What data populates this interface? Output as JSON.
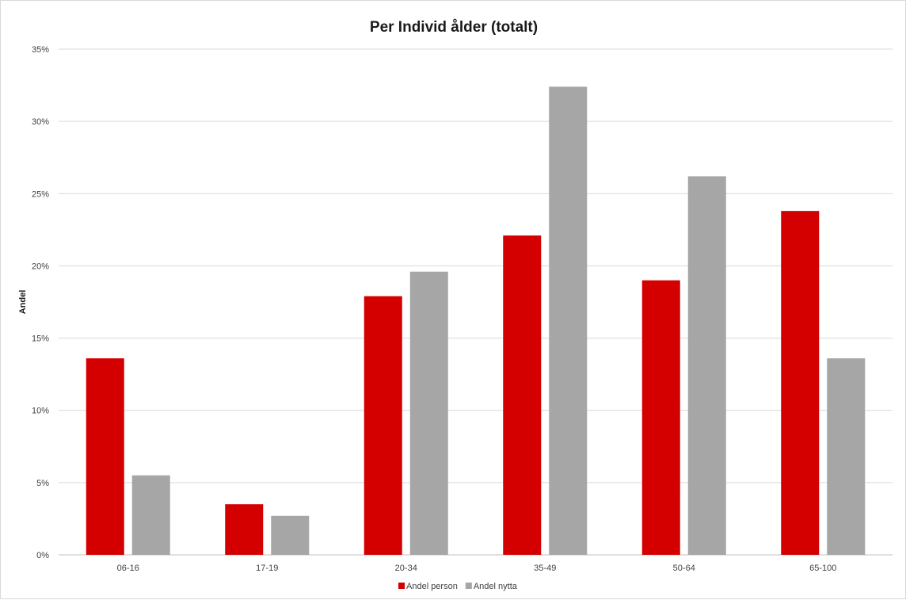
{
  "chart_data": {
    "type": "bar",
    "title": "Per Individ ålder (totalt)",
    "xlabel": "",
    "ylabel": "Andel",
    "categories": [
      "06-16",
      "17-19",
      "20-34",
      "35-49",
      "50-64",
      "65-100"
    ],
    "series": [
      {
        "name": "Andel person",
        "color": "#d40000",
        "values": [
          13.6,
          3.5,
          17.9,
          22.1,
          19.0,
          23.8
        ]
      },
      {
        "name": "Andel nytta",
        "color": "#a6a6a6",
        "values": [
          5.5,
          2.7,
          19.6,
          32.4,
          26.2,
          13.6
        ]
      }
    ],
    "ylim": [
      0,
      35
    ],
    "yticks": [
      0,
      5,
      10,
      15,
      20,
      25,
      30,
      35
    ],
    "ytick_labels": [
      "0%",
      "5%",
      "10%",
      "15%",
      "20%",
      "25%",
      "30%",
      "35%"
    ],
    "grid": true,
    "legend_position": "bottom"
  }
}
